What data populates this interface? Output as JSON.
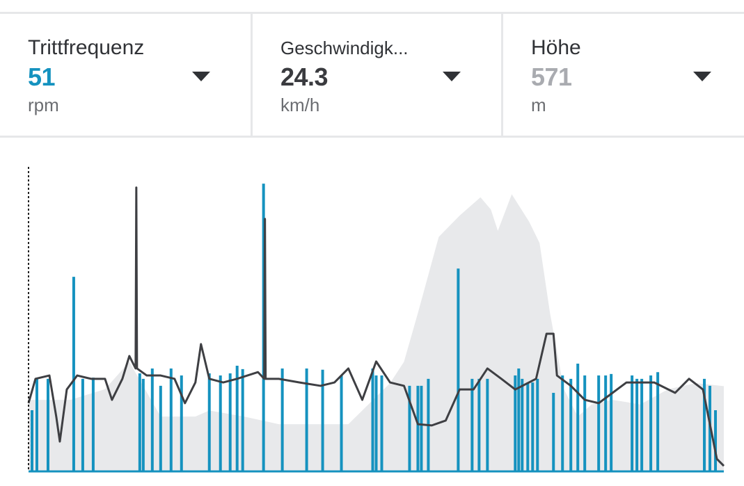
{
  "metrics": [
    {
      "label": "Trittfrequenz",
      "value": "51",
      "unit": "rpm",
      "value_color": "#1592bf",
      "icon": "caret-down-icon"
    },
    {
      "label": "Geschwindigk...",
      "value": "24.3",
      "unit": "km/h",
      "value_color": "#3a3b3f",
      "icon": "caret-down-icon"
    },
    {
      "label": "Höhe",
      "value": "571",
      "unit": "m",
      "value_color": "#a9abb0",
      "icon": "caret-down-icon"
    }
  ],
  "colors": {
    "cadence": "#1592bf",
    "speed": "#3e3f43",
    "elevation": "#e8e9eb",
    "divider": "#e6e7e9"
  },
  "chart_data": {
    "type": "line",
    "title": "",
    "xlabel": "",
    "ylabel": "",
    "xlim": [
      0,
      100
    ],
    "ylim": [
      0,
      100
    ],
    "grid": false,
    "series": [
      {
        "key": "elevation",
        "type": "area",
        "points": [
          [
            0,
            23.5
          ],
          [
            6,
            23.5
          ],
          [
            11,
            27
          ],
          [
            14.5,
            36
          ],
          [
            19,
            18
          ],
          [
            24,
            18
          ],
          [
            26,
            20
          ],
          [
            31,
            18
          ],
          [
            36,
            15.5
          ],
          [
            46,
            15.5
          ],
          [
            48,
            20
          ],
          [
            52,
            29
          ],
          [
            54,
            36
          ],
          [
            56,
            52
          ],
          [
            59,
            77
          ],
          [
            62,
            84
          ],
          [
            65,
            90
          ],
          [
            66.5,
            86
          ],
          [
            67.5,
            79
          ],
          [
            69.5,
            91
          ],
          [
            72,
            82
          ],
          [
            73.5,
            75
          ],
          [
            75,
            52
          ],
          [
            77,
            27
          ],
          [
            79,
            18
          ],
          [
            81,
            22
          ],
          [
            84,
            23.5
          ],
          [
            88,
            22
          ],
          [
            92,
            27
          ],
          [
            96,
            29
          ],
          [
            100,
            28
          ]
        ]
      },
      {
        "key": "speed",
        "type": "line",
        "points": [
          [
            0,
            22.4
          ],
          [
            1,
            30.4
          ],
          [
            3,
            31.5
          ],
          [
            4,
            17.8
          ],
          [
            4.5,
            9.8
          ],
          [
            5.5,
            26.9
          ],
          [
            7,
            31.5
          ],
          [
            9,
            30.4
          ],
          [
            11,
            30.4
          ],
          [
            12,
            23.5
          ],
          [
            13.5,
            30.4
          ],
          [
            14.5,
            37.9
          ],
          [
            15.4,
            33.8
          ],
          [
            15.5,
            93.2
          ],
          [
            15.6,
            33.8
          ],
          [
            17,
            31.5
          ],
          [
            19,
            31.5
          ],
          [
            21,
            30.4
          ],
          [
            22.5,
            22.4
          ],
          [
            24,
            29.2
          ],
          [
            24.8,
            41.8
          ],
          [
            26,
            30.4
          ],
          [
            28,
            29.2
          ],
          [
            30,
            30.4
          ],
          [
            33,
            32.6
          ],
          [
            33.9,
            30.4
          ],
          [
            34,
            82.9
          ],
          [
            34.1,
            30.4
          ],
          [
            36,
            30.4
          ],
          [
            39,
            29.2
          ],
          [
            42,
            28.1
          ],
          [
            44,
            29.2
          ],
          [
            46,
            33.8
          ],
          [
            48,
            23.5
          ],
          [
            50,
            36.1
          ],
          [
            52,
            29.2
          ],
          [
            54,
            28.1
          ],
          [
            56,
            15.5
          ],
          [
            58,
            15.1
          ],
          [
            60,
            16.7
          ],
          [
            62,
            26.9
          ],
          [
            64,
            26.9
          ],
          [
            66,
            33.8
          ],
          [
            68,
            30.4
          ],
          [
            70,
            26.9
          ],
          [
            73,
            30.4
          ],
          [
            74.5,
            45.2
          ],
          [
            75.5,
            45.2
          ],
          [
            76,
            31.5
          ],
          [
            78,
            28.1
          ],
          [
            80,
            23.5
          ],
          [
            82,
            22.4
          ],
          [
            84,
            25.8
          ],
          [
            86,
            29.2
          ],
          [
            90,
            29.2
          ],
          [
            93,
            25.8
          ],
          [
            95,
            30.4
          ],
          [
            97,
            26.9
          ],
          [
            99,
            4.1
          ],
          [
            100,
            1.8
          ]
        ]
      },
      {
        "key": "cadence",
        "type": "spikes",
        "points": [
          [
            0.5,
            20.1
          ],
          [
            1.2,
            30.4
          ],
          [
            2.8,
            30.4
          ],
          [
            6.5,
            63.9
          ],
          [
            7.8,
            30.4
          ],
          [
            9.3,
            30.8
          ],
          [
            16,
            32.2
          ],
          [
            16.5,
            30.4
          ],
          [
            17.8,
            33.8
          ],
          [
            19,
            28.1
          ],
          [
            20.5,
            33.8
          ],
          [
            22,
            31.5
          ],
          [
            26,
            32.2
          ],
          [
            27.6,
            31.5
          ],
          [
            29,
            32.2
          ],
          [
            30,
            34.7
          ],
          [
            30.8,
            33.6
          ],
          [
            33.8,
            94.5
          ],
          [
            36.5,
            33.8
          ],
          [
            40,
            33.8
          ],
          [
            42.3,
            33.4
          ],
          [
            45,
            31.5
          ],
          [
            49.5,
            33.8
          ],
          [
            50,
            31.5
          ],
          [
            50.8,
            31.5
          ],
          [
            54.8,
            28.1
          ],
          [
            56,
            28.1
          ],
          [
            56.5,
            28.1
          ],
          [
            57.5,
            30.4
          ],
          [
            61.8,
            66.6
          ],
          [
            63.8,
            30.4
          ],
          [
            64.8,
            30.4
          ],
          [
            66,
            30.4
          ],
          [
            70,
            31.5
          ],
          [
            70.5,
            33.8
          ],
          [
            71,
            30.4
          ],
          [
            71.8,
            29.2
          ],
          [
            72.5,
            29.2
          ],
          [
            73.2,
            30.4
          ],
          [
            75.5,
            25.8
          ],
          [
            76.8,
            31.5
          ],
          [
            78,
            30.4
          ],
          [
            79,
            35.4
          ],
          [
            80,
            31.5
          ],
          [
            82,
            31.5
          ],
          [
            83,
            31.5
          ],
          [
            83.8,
            32
          ],
          [
            86.8,
            31.5
          ],
          [
            87.5,
            30.4
          ],
          [
            88.2,
            30.4
          ],
          [
            89.5,
            31.5
          ],
          [
            90.5,
            32.6
          ],
          [
            97.2,
            30.4
          ],
          [
            98,
            28.1
          ],
          [
            98.8,
            20.1
          ]
        ]
      }
    ]
  }
}
